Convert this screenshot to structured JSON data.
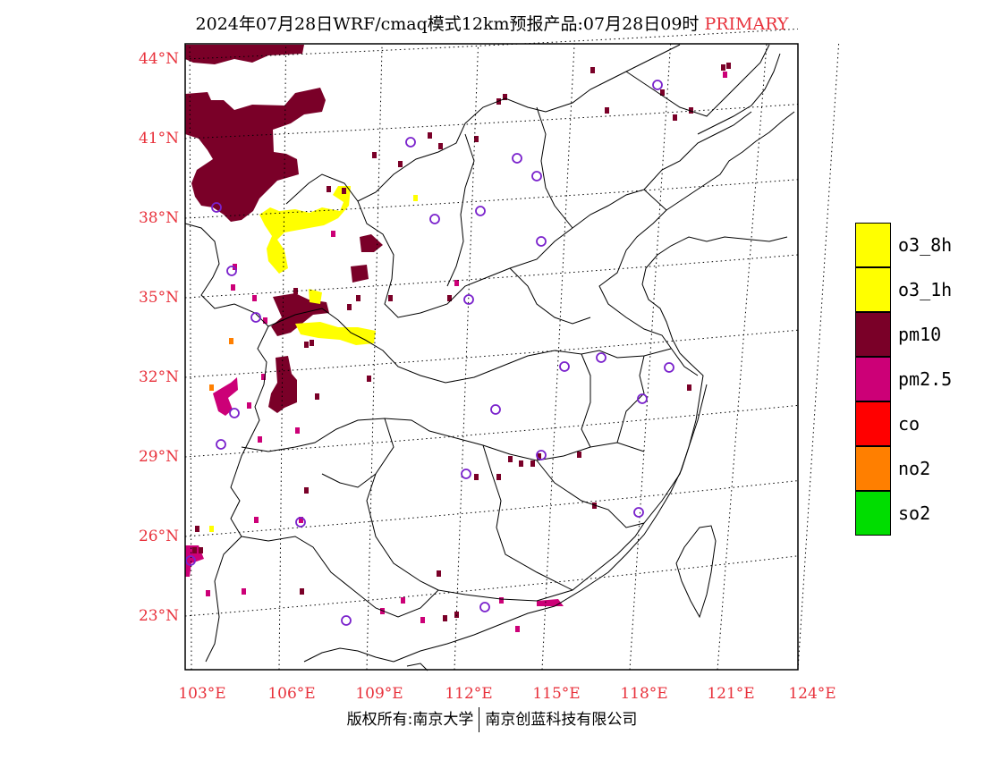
{
  "title": {
    "main": "2024年07月28日WRF/cmaq模式12km预报产品:07月28日09时",
    "tag": "PRIMARY"
  },
  "axes": {
    "latitudes": [
      "44°N",
      "41°N",
      "38°N",
      "35°N",
      "32°N",
      "29°N",
      "26°N",
      "23°N"
    ],
    "longitudes": [
      "103°E",
      "106°E",
      "109°E",
      "112°E",
      "115°E",
      "118°E",
      "121°E",
      "124°E"
    ],
    "label_color": "#e8323c",
    "grid": "dotted"
  },
  "legend": [
    {
      "label": "o3_8h",
      "color": "#ffff00"
    },
    {
      "label": "o3_1h",
      "color": "#ffff00"
    },
    {
      "label": "pm10",
      "color": "#7a0028"
    },
    {
      "label": "pm2.5",
      "color": "#cc0077"
    },
    {
      "label": "co",
      "color": "#ff0000"
    },
    {
      "label": "no2",
      "color": "#ff7f00"
    },
    {
      "label": "so2",
      "color": "#00dd00"
    }
  ],
  "footer": {
    "left": "版权所有:南京大学",
    "right": "南京创蓝科技有限公司"
  },
  "map_colors": {
    "pm10": "#7a0028",
    "pm25": "#cc0077",
    "o3": "#ffff00",
    "no2": "#ff7f00",
    "station": "#7a22cc"
  }
}
